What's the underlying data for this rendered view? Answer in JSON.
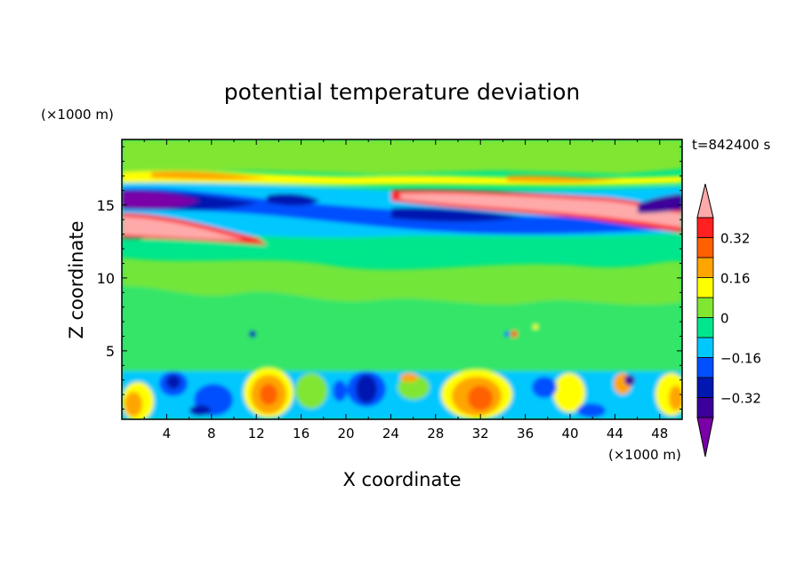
{
  "chart_data": {
    "type": "heatmap",
    "title": "potential temperature deviation",
    "xlabel": "X coordinate",
    "ylabel": "Z coordinate",
    "x_unit_label": "(×1000 m)",
    "y_unit_label": "(×1000 m)",
    "time_label": "t=842400 s",
    "xlim": [
      0,
      50
    ],
    "ylim": [
      0.3,
      19.5
    ],
    "x_ticks": [
      "4",
      "8",
      "12",
      "16",
      "20",
      "24",
      "28",
      "32",
      "36",
      "40",
      "44",
      "48"
    ],
    "y_ticks": [
      "5",
      "10",
      "15"
    ],
    "colorbar": {
      "tick_labels": [
        "0.32",
        "0.16",
        "0",
        "−0.16",
        "−0.32"
      ],
      "levels": [
        -0.48,
        -0.4,
        -0.32,
        -0.24,
        -0.16,
        -0.08,
        0,
        0.08,
        0.16,
        0.24,
        0.32,
        0.4,
        0.48
      ],
      "colors": [
        "#7a00a8",
        "#3c009a",
        "#0018b0",
        "#0050ff",
        "#00c8ff",
        "#00e68c",
        "#80e632",
        "#ffff00",
        "#ffa500",
        "#ff6000",
        "#ff2020",
        "#ffaaaa"
      ],
      "extend": "both"
    },
    "layers": [
      {
        "z": [
          17.0,
          18.0
        ],
        "value": 0.2,
        "desc": "upper warm band"
      },
      {
        "z": [
          15.2,
          16.6
        ],
        "value": -0.4,
        "desc": "upper cold core"
      },
      {
        "z": [
          12.6,
          14.8
        ],
        "value": 0.4,
        "desc": "warm tilted band"
      },
      {
        "z": [
          0.3,
          3.6
        ],
        "value": 0.25,
        "desc": "boundary layer cells"
      }
    ]
  }
}
